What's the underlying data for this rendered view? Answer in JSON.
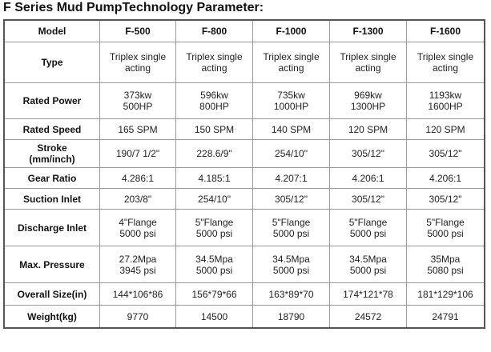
{
  "title": "F Series Mud PumpTechnology Parameter:",
  "header": {
    "label": "Model",
    "models": [
      "F-500",
      "F-800",
      "F-1000",
      "F-1300",
      "F-1600"
    ]
  },
  "rows": [
    {
      "label": [
        "Type"
      ],
      "cells": [
        [
          "Triplex single",
          "acting"
        ],
        [
          "Triplex single",
          "acting"
        ],
        [
          "Triplex single",
          "acting"
        ],
        [
          "Triplex single",
          "acting"
        ],
        [
          "Triplex single",
          "acting"
        ]
      ]
    },
    {
      "label": [
        "Rated Power"
      ],
      "cells": [
        [
          "373kw",
          "500HP"
        ],
        [
          "596kw",
          "800HP"
        ],
        [
          "735kw",
          "1000HP"
        ],
        [
          "969kw",
          "1300HP"
        ],
        [
          "1193kw",
          "1600HP"
        ]
      ]
    },
    {
      "label": [
        "Rated Speed"
      ],
      "cells": [
        [
          "165 SPM"
        ],
        [
          "150 SPM"
        ],
        [
          "140 SPM"
        ],
        [
          "120 SPM"
        ],
        [
          "120 SPM"
        ]
      ]
    },
    {
      "label": [
        "Stroke",
        "(mm/inch)"
      ],
      "cells": [
        [
          "190/7 1/2\""
        ],
        [
          "228.6/9\""
        ],
        [
          "254/10\""
        ],
        [
          "305/12\""
        ],
        [
          "305/12\""
        ]
      ]
    },
    {
      "label": [
        "Gear Ratio"
      ],
      "cells": [
        [
          "4.286:1"
        ],
        [
          "4.185:1"
        ],
        [
          "4.207:1"
        ],
        [
          "4.206:1"
        ],
        [
          "4.206:1"
        ]
      ]
    },
    {
      "label": [
        "Suction Inlet"
      ],
      "cells": [
        [
          "203/8\""
        ],
        [
          "254/10\""
        ],
        [
          "305/12\""
        ],
        [
          "305/12\""
        ],
        [
          "305/12\""
        ]
      ]
    },
    {
      "label": [
        "Discharge Inlet"
      ],
      "cells": [
        [
          "4\"Flange",
          "5000 psi"
        ],
        [
          "5\"Flange",
          "5000 psi"
        ],
        [
          "5\"Flange",
          "5000 psi"
        ],
        [
          "5\"Flange",
          "5000 psi"
        ],
        [
          "5\"Flange",
          "5000 psi"
        ]
      ]
    },
    {
      "label": [
        "Max. Pressure"
      ],
      "cells": [
        [
          "27.2Mpa",
          "3945 psi"
        ],
        [
          "34.5Mpa",
          "5000 psi"
        ],
        [
          "34.5Mpa",
          "5000 psi"
        ],
        [
          "34.5Mpa",
          "5000 psi"
        ],
        [
          "35Mpa",
          "5080 psi"
        ]
      ]
    },
    {
      "label": [
        "Overall Size(in)"
      ],
      "cells": [
        [
          "144*106*86"
        ],
        [
          "156*79*66"
        ],
        [
          "163*89*70"
        ],
        [
          "174*121*78"
        ],
        [
          "181*129*106"
        ]
      ]
    },
    {
      "label": [
        "Weight(kg)"
      ],
      "cells": [
        [
          "9770"
        ],
        [
          "14500"
        ],
        [
          "18790"
        ],
        [
          "24572"
        ],
        [
          "24791"
        ]
      ]
    }
  ]
}
